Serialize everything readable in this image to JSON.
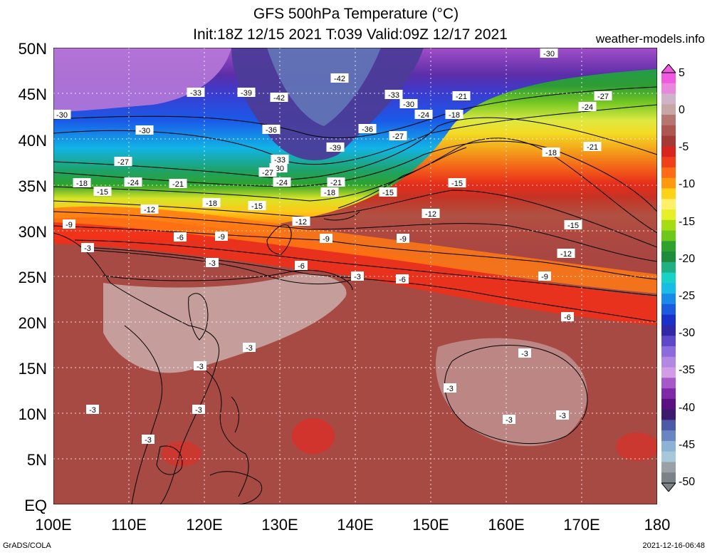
{
  "title_line1": "GFS 500hPa Temperature (°C)",
  "title_line2": "Init:18Z 12/15 2021 T:039 Valid:09Z 12/17 2021",
  "site": "weather-models.info",
  "credit": "GrADS/COLA",
  "timestamp": "2021-12-16-06:48",
  "lat_labels": [
    "50N",
    "45N",
    "40N",
    "35N",
    "30N",
    "25N",
    "20N",
    "15N",
    "10N",
    "5N",
    "EQ"
  ],
  "lon_labels": [
    "100E",
    "110E",
    "120E",
    "130E",
    "140E",
    "150E",
    "160E",
    "170E",
    "180"
  ],
  "colorbar": {
    "labels": [
      "5",
      "0",
      "-5",
      "-10",
      "-15",
      "-20",
      "-25",
      "-30",
      "-35",
      "-40",
      "-45",
      "-50"
    ],
    "colors": [
      "#f05ae0",
      "#e888dc",
      "#cfb3c8",
      "#c8a6a4",
      "#b57571",
      "#ad5750",
      "#a43a36",
      "#d6261e",
      "#f0401a",
      "#ff6a14",
      "#ff9a10",
      "#ffd21a",
      "#fff06a",
      "#e6f028",
      "#a6dc14",
      "#6cc81a",
      "#2ea22c",
      "#1e8c3c",
      "#20b082",
      "#18d2c8",
      "#18bce6",
      "#1a8ae8",
      "#1c5ae0",
      "#1a30c8",
      "#3028a8",
      "#5c48c8",
      "#8c6cdc",
      "#b288e2",
      "#d29ce6",
      "#a658c8",
      "#7c2aa8",
      "#5a1080",
      "#3c1a6c",
      "#4c5aa8",
      "#6a86c0",
      "#8cb2d6",
      "#a6c8d8",
      "#9aa0a6",
      "#7c8288"
    ]
  },
  "contour_labels": [
    {
      "text": "-30"
    },
    {
      "text": "-33"
    },
    {
      "text": "-39"
    },
    {
      "text": "-42"
    },
    {
      "text": "-42"
    },
    {
      "text": "-33"
    },
    {
      "text": "-30"
    },
    {
      "text": "-21"
    },
    {
      "text": "-27"
    },
    {
      "text": "-24"
    },
    {
      "text": "-30"
    },
    {
      "text": "-30"
    },
    {
      "text": "-36"
    },
    {
      "text": "-36"
    },
    {
      "text": "-24"
    },
    {
      "text": "-18"
    },
    {
      "text": "-27"
    },
    {
      "text": "-39"
    },
    {
      "text": "-18"
    },
    {
      "text": "-21"
    },
    {
      "text": "-27"
    },
    {
      "text": "-33"
    },
    {
      "text": "-30"
    },
    {
      "text": "-27"
    },
    {
      "text": "-18"
    },
    {
      "text": "-24"
    },
    {
      "text": "-21"
    },
    {
      "text": "-24"
    },
    {
      "text": "-21"
    },
    {
      "text": "-18"
    },
    {
      "text": "-15"
    },
    {
      "text": "-15"
    },
    {
      "text": "-15"
    },
    {
      "text": "-18"
    },
    {
      "text": "-15"
    },
    {
      "text": "-12"
    },
    {
      "text": "-12"
    },
    {
      "text": "-12"
    },
    {
      "text": "-9"
    },
    {
      "text": "-15"
    },
    {
      "text": "-6"
    },
    {
      "text": "-9"
    },
    {
      "text": "-9"
    },
    {
      "text": "-9"
    },
    {
      "text": "-3"
    },
    {
      "text": "-12"
    },
    {
      "text": "-3"
    },
    {
      "text": "-6"
    },
    {
      "text": "-3"
    },
    {
      "text": "-6"
    },
    {
      "text": "-9"
    },
    {
      "text": "-6"
    },
    {
      "text": "-3"
    },
    {
      "text": "-3"
    },
    {
      "text": "-3"
    },
    {
      "text": "-3"
    },
    {
      "text": "-3"
    },
    {
      "text": "-3"
    },
    {
      "text": "-3"
    },
    {
      "text": "-3"
    },
    {
      "text": "-3"
    }
  ]
}
